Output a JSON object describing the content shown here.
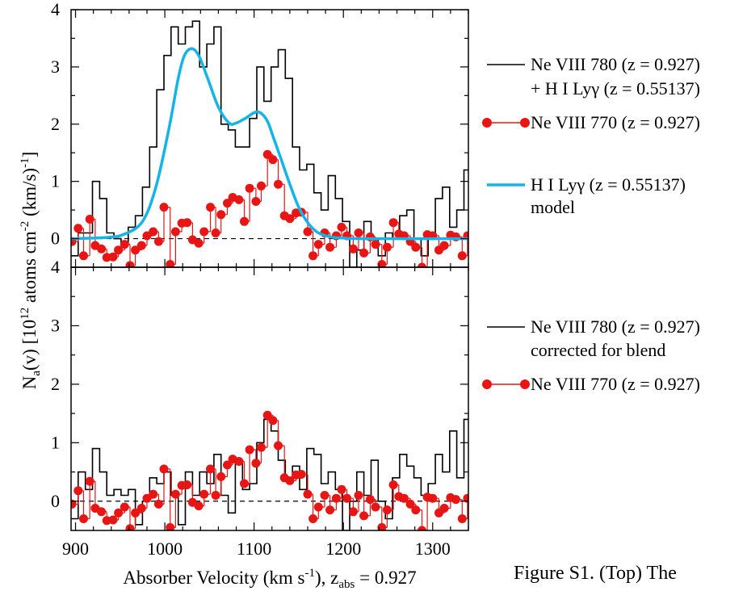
{
  "chart_data": [
    {
      "type": "line",
      "panel": "top",
      "xlim": [
        895,
        1340
      ],
      "ylim": [
        -0.5,
        4
      ],
      "y_ticks": [
        "0",
        "1",
        "2",
        "3",
        "4"
      ],
      "series": [
        {
          "name": "Ne VIII 780 (z = 0.927) + H I Lyγ (z = 0.55137)",
          "style": "histogram",
          "color": "#000000",
          "x": [
            895,
            903,
            911,
            919,
            927,
            935,
            943,
            951,
            959,
            967,
            975,
            983,
            991,
            999,
            1007,
            1015,
            1023,
            1031,
            1039,
            1047,
            1055,
            1063,
            1071,
            1079,
            1087,
            1095,
            1103,
            1111,
            1119,
            1127,
            1135,
            1143,
            1151,
            1159,
            1167,
            1175,
            1183,
            1191,
            1199,
            1207,
            1215,
            1223,
            1231,
            1239,
            1247,
            1255,
            1263,
            1271,
            1279,
            1287,
            1295,
            1303,
            1311,
            1319,
            1327,
            1335
          ],
          "values": [
            -0.3,
            0.1,
            0.1,
            1.0,
            0.7,
            0.1,
            0.0,
            -0.1,
            0.2,
            0.4,
            0.9,
            1.6,
            2.6,
            3.2,
            3.7,
            3.4,
            3.7,
            3.8,
            3.0,
            3.4,
            3.7,
            2.0,
            1.9,
            1.6,
            1.6,
            2.1,
            3.0,
            2.4,
            3.0,
            3.3,
            2.8,
            1.6,
            1.2,
            1.3,
            0.8,
            0.5,
            1.1,
            0.7,
            0.3,
            -0.5,
            -0.2,
            0.3,
            0.0,
            -0.3,
            0.1,
            0.0,
            0.4,
            0.5,
            0.0,
            -0.3,
            0.0,
            0.7,
            0.9,
            0.2,
            0.5,
            1.2
          ]
        },
        {
          "name": "Ne VIII 770 (z = 0.927)",
          "style": "points-with-stems",
          "color": "#e81515",
          "x": [
            896,
            903,
            909,
            916,
            922,
            929,
            935,
            942,
            948,
            955,
            961,
            967,
            974,
            980,
            987,
            993,
            999,
            1006,
            1012,
            1019,
            1025,
            1031,
            1038,
            1044,
            1051,
            1057,
            1063,
            1070,
            1076,
            1083,
            1089,
            1095,
            1102,
            1108,
            1115,
            1121,
            1127,
            1134,
            1140,
            1147,
            1153,
            1160,
            1166,
            1172,
            1179,
            1185,
            1192,
            1198,
            1204,
            1211,
            1217,
            1223,
            1230,
            1236,
            1243,
            1249,
            1256,
            1262,
            1268,
            1275,
            1281,
            1288,
            1294,
            1300,
            1307,
            1313,
            1320,
            1326,
            1333,
            1339
          ],
          "values": [
            -0.05,
            0.18,
            -0.3,
            0.34,
            -0.12,
            -0.18,
            -0.33,
            -0.32,
            -0.2,
            -0.1,
            -0.47,
            -0.2,
            -0.12,
            0.05,
            0.12,
            -0.05,
            0.55,
            -0.45,
            0.12,
            0.27,
            0.28,
            -0.02,
            -0.08,
            0.12,
            0.55,
            0.1,
            0.42,
            0.62,
            0.72,
            0.68,
            0.3,
            0.88,
            0.65,
            0.92,
            1.47,
            1.38,
            0.95,
            0.4,
            0.35,
            0.45,
            0.46,
            0.12,
            -0.3,
            -0.1,
            0.1,
            -0.15,
            0.05,
            0.2,
            0.05,
            -0.18,
            0.1,
            -0.25,
            0.03,
            -0.1,
            -0.45,
            -0.15,
            0.28,
            0.08,
            0.05,
            -0.05,
            -0.15,
            -0.5,
            0.07,
            0.05,
            -0.2,
            -0.12,
            0.06,
            0.03,
            -0.3,
            0.05
          ]
        },
        {
          "name": "H I Lyγ (z = 0.55137) model",
          "style": "smooth-line",
          "color": "#14b4e8",
          "x": [
            895,
            935,
            955,
            975,
            990,
            1005,
            1015,
            1022,
            1030,
            1038,
            1048,
            1060,
            1072,
            1080,
            1090,
            1100,
            1107,
            1115,
            1122,
            1130,
            1140,
            1150,
            1160,
            1170,
            1180,
            1190,
            1200,
            1220,
            1340
          ],
          "values": [
            0.0,
            0.02,
            0.08,
            0.3,
            0.9,
            1.95,
            2.8,
            3.2,
            3.32,
            3.2,
            2.8,
            2.3,
            2.02,
            2.02,
            2.1,
            2.2,
            2.2,
            2.05,
            1.75,
            1.4,
            0.95,
            0.55,
            0.28,
            0.12,
            0.05,
            0.02,
            0.01,
            0.0,
            0.0
          ]
        }
      ]
    },
    {
      "type": "line",
      "panel": "bottom",
      "xlim": [
        895,
        1340
      ],
      "ylim": [
        -0.5,
        4
      ],
      "x_ticks": [
        "900",
        "1000",
        "1100",
        "1200",
        "1300"
      ],
      "y_ticks": [
        "0",
        "1",
        "2",
        "3",
        "4"
      ],
      "series": [
        {
          "name": "Ne VIII 780 (z = 0.927) corrected for blend",
          "style": "histogram",
          "color": "#000000",
          "x": [
            895,
            903,
            911,
            919,
            927,
            935,
            943,
            951,
            959,
            967,
            975,
            983,
            991,
            999,
            1007,
            1015,
            1023,
            1031,
            1039,
            1047,
            1055,
            1063,
            1071,
            1079,
            1087,
            1095,
            1103,
            1111,
            1119,
            1127,
            1135,
            1143,
            1151,
            1159,
            1167,
            1175,
            1183,
            1191,
            1199,
            1207,
            1215,
            1223,
            1231,
            1239,
            1247,
            1255,
            1263,
            1271,
            1279,
            1287,
            1295,
            1303,
            1311,
            1319,
            1327,
            1335
          ],
          "values": [
            -0.3,
            0.5,
            0.2,
            0.9,
            0.5,
            0.1,
            0.2,
            0.1,
            0.2,
            -0.4,
            0.0,
            0.4,
            0.3,
            0.5,
            0.1,
            -0.4,
            0.5,
            0.1,
            0.5,
            0.3,
            0.8,
            0.1,
            -0.2,
            0.7,
            0.2,
            0.3,
            1.0,
            1.4,
            1.2,
            0.7,
            0.4,
            0.6,
            0.2,
            0.9,
            0.8,
            0.3,
            0.5,
            0.2,
            -0.5,
            0.0,
            0.5,
            0.1,
            0.7,
            0.0,
            -0.3,
            0.4,
            0.8,
            0.6,
            0.4,
            0.1,
            0.3,
            0.8,
            0.5,
            1.2,
            0.4,
            1.4
          ]
        },
        {
          "name": "Ne VIII 770 (z = 0.927)",
          "style": "points-with-stems",
          "color": "#e81515",
          "x": [
            896,
            903,
            909,
            916,
            922,
            929,
            935,
            942,
            948,
            955,
            961,
            967,
            974,
            980,
            987,
            993,
            999,
            1006,
            1012,
            1019,
            1025,
            1031,
            1038,
            1044,
            1051,
            1057,
            1063,
            1070,
            1076,
            1083,
            1089,
            1095,
            1102,
            1108,
            1115,
            1121,
            1127,
            1134,
            1140,
            1147,
            1153,
            1160,
            1166,
            1172,
            1179,
            1185,
            1192,
            1198,
            1204,
            1211,
            1217,
            1223,
            1230,
            1236,
            1243,
            1249,
            1256,
            1262,
            1268,
            1275,
            1281,
            1288,
            1294,
            1300,
            1307,
            1313,
            1320,
            1326,
            1333,
            1339
          ],
          "values": [
            -0.05,
            0.18,
            -0.3,
            0.34,
            -0.12,
            -0.18,
            -0.33,
            -0.32,
            -0.2,
            -0.1,
            -0.47,
            -0.2,
            -0.12,
            0.05,
            0.12,
            -0.05,
            0.55,
            -0.45,
            0.12,
            0.27,
            0.28,
            -0.02,
            -0.08,
            0.12,
            0.55,
            0.1,
            0.42,
            0.62,
            0.72,
            0.68,
            0.3,
            0.88,
            0.65,
            0.92,
            1.47,
            1.38,
            0.95,
            0.4,
            0.35,
            0.45,
            0.46,
            0.12,
            -0.3,
            -0.1,
            0.1,
            -0.15,
            0.05,
            0.2,
            0.05,
            -0.18,
            0.1,
            -0.25,
            0.03,
            -0.1,
            -0.45,
            -0.15,
            0.28,
            0.08,
            0.05,
            -0.05,
            -0.15,
            -0.5,
            0.07,
            0.05,
            -0.2,
            -0.12,
            0.06,
            0.03,
            -0.3,
            0.05
          ]
        }
      ]
    }
  ],
  "ylabel": {
    "pre": "N",
    "sub": "a",
    "mid": "(v) [10",
    "sup": "12",
    "mid2": " atoms cm",
    "sup2": "-2",
    "mid3": " (km/s)",
    "sup3": "-1",
    "end": "]"
  },
  "xlabel": {
    "pre": "Absorber Velocity (km s",
    "sup": "-1",
    "mid": "), z",
    "sub": "abs",
    "end": " = 0.927"
  },
  "legend_top": [
    {
      "line1": "Ne VIII 780 (z = 0.927)",
      "line2": "+ H I Lyγ (z = 0.55137)"
    },
    {
      "line1": "Ne VIII 770 (z = 0.927)",
      "line2": ""
    },
    {
      "line1": "H I Lyγ (z = 0.55137)",
      "line2": "model"
    }
  ],
  "legend_bottom": [
    {
      "line1": "Ne VIII 780 (z = 0.927)",
      "line2": "corrected for blend"
    },
    {
      "line1": "Ne VIII 770 (z = 0.927)",
      "line2": ""
    }
  ],
  "caption": "Figure S1.  (Top) The"
}
